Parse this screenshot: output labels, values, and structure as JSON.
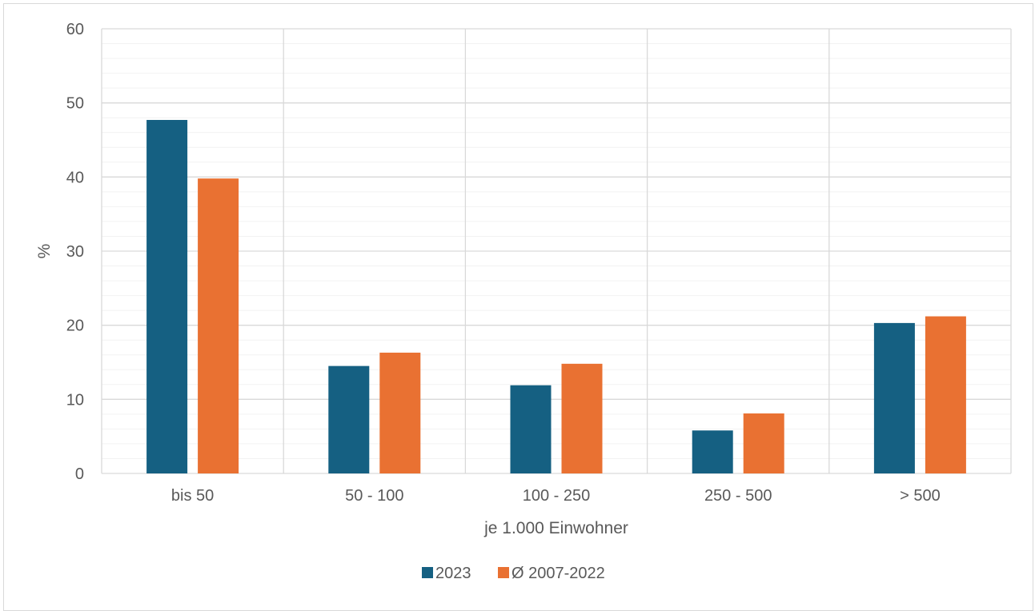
{
  "chart_data": {
    "type": "bar",
    "title": "",
    "xlabel": "je 1.000 Einwohner",
    "ylabel": "%",
    "ylim": [
      0,
      60
    ],
    "y_major_step": 10,
    "y_minor_step": 2,
    "grid": true,
    "legend_position": "bottom",
    "categories": [
      "bis 50",
      "50 - 100",
      "100 - 250",
      "250 - 500",
      "> 500"
    ],
    "series": [
      {
        "name": "2023",
        "color": "#156082",
        "values": [
          47.7,
          14.5,
          11.9,
          5.8,
          20.3
        ]
      },
      {
        "name": "Ø 2007-2022",
        "color": "#e97132",
        "values": [
          39.8,
          16.3,
          14.8,
          8.1,
          21.2
        ]
      }
    ]
  }
}
